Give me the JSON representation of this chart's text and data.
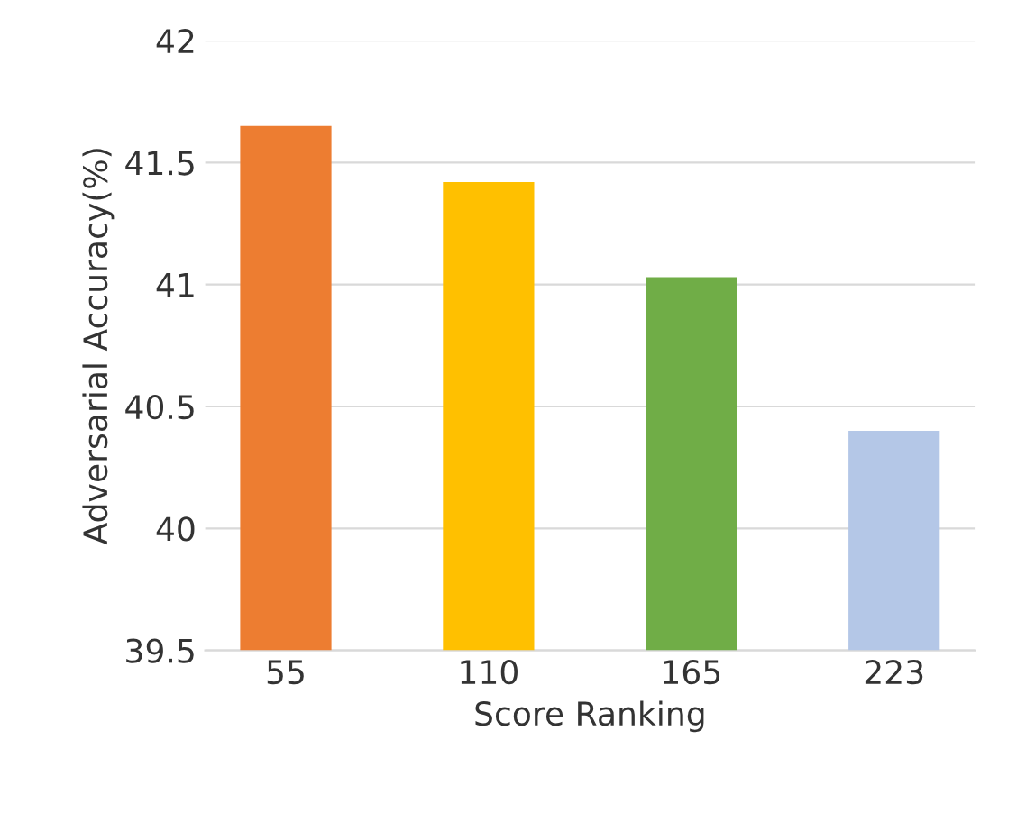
{
  "chart_data": {
    "type": "bar",
    "xlabel": "Score Ranking",
    "ylabel": "Adversarial Accuracy(%)",
    "categories": [
      "55",
      "110",
      "165",
      "223"
    ],
    "values": [
      41.65,
      41.42,
      41.03,
      40.4
    ],
    "colors": [
      "#ed7d31",
      "#ffc000",
      "#70ad47",
      "#b4c7e7"
    ],
    "ylim": [
      39.5,
      42
    ],
    "yticks": [
      39.5,
      40,
      40.5,
      41,
      41.5,
      42
    ],
    "grid": "y"
  }
}
